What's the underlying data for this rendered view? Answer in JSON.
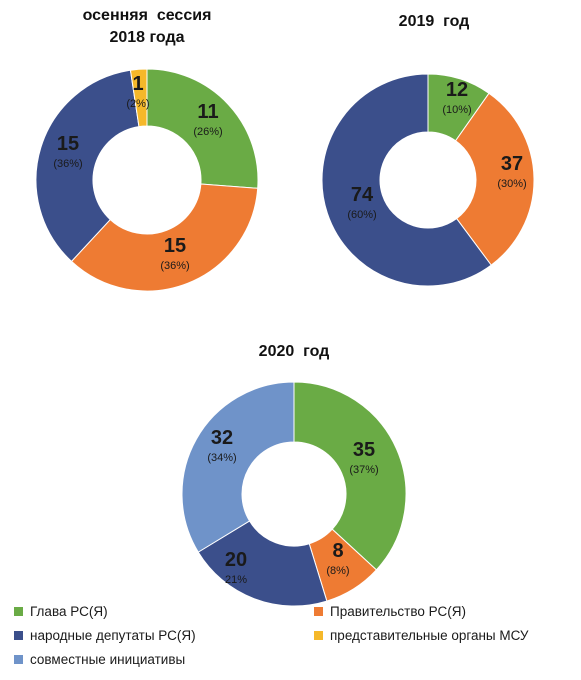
{
  "colors": {
    "glava": "#6aab45",
    "pravitelstvo": "#ee7b33",
    "deputaty": "#3b4f8b",
    "msu": "#f5b82a",
    "sovmestnye": "#6f93c9"
  },
  "chart_data": [
    {
      "type": "pie",
      "title_lines": [
        "осенняя  сессия",
        "2018 года"
      ],
      "slices": [
        {
          "key": "glava",
          "value": 11,
          "value_label": "11",
          "percent_label": "(26%)"
        },
        {
          "key": "pravitelstvo",
          "value": 15,
          "value_label": "15",
          "percent_label": "(36%)"
        },
        {
          "key": "deputaty",
          "value": 15,
          "value_label": "15",
          "percent_label": "(36%)"
        },
        {
          "key": "msu",
          "value": 1,
          "value_label": "1",
          "percent_label": "(2%)"
        }
      ]
    },
    {
      "type": "pie",
      "title_lines": [
        "2019  год"
      ],
      "slices": [
        {
          "key": "glava",
          "value": 12,
          "value_label": "12",
          "percent_label": "(10%)"
        },
        {
          "key": "pravitelstvo",
          "value": 37,
          "value_label": "37",
          "percent_label": "(30%)"
        },
        {
          "key": "deputaty",
          "value": 74,
          "value_label": "74",
          "percent_label": "(60%)"
        }
      ]
    },
    {
      "type": "pie",
      "title_lines": [
        "2020  год"
      ],
      "slices": [
        {
          "key": "glava",
          "value": 35,
          "value_label": "35",
          "percent_label": "(37%)"
        },
        {
          "key": "pravitelstvo",
          "value": 8,
          "value_label": "8",
          "percent_label": "(8%)"
        },
        {
          "key": "deputaty",
          "value": 20,
          "value_label": "20",
          "percent_label": "21%"
        },
        {
          "key": "sovmestnye",
          "value": 32,
          "value_label": "32",
          "percent_label": "(34%)"
        }
      ]
    }
  ],
  "legend": [
    {
      "key": "glava",
      "label": "Глава РС(Я)"
    },
    {
      "key": "pravitelstvo",
      "label": "Правительство РС(Я)"
    },
    {
      "key": "deputaty",
      "label": "народные депутаты РС(Я)"
    },
    {
      "key": "msu",
      "label": "представительные органы МСУ"
    },
    {
      "key": "sovmestnye",
      "label": "совместные инициативы"
    }
  ]
}
